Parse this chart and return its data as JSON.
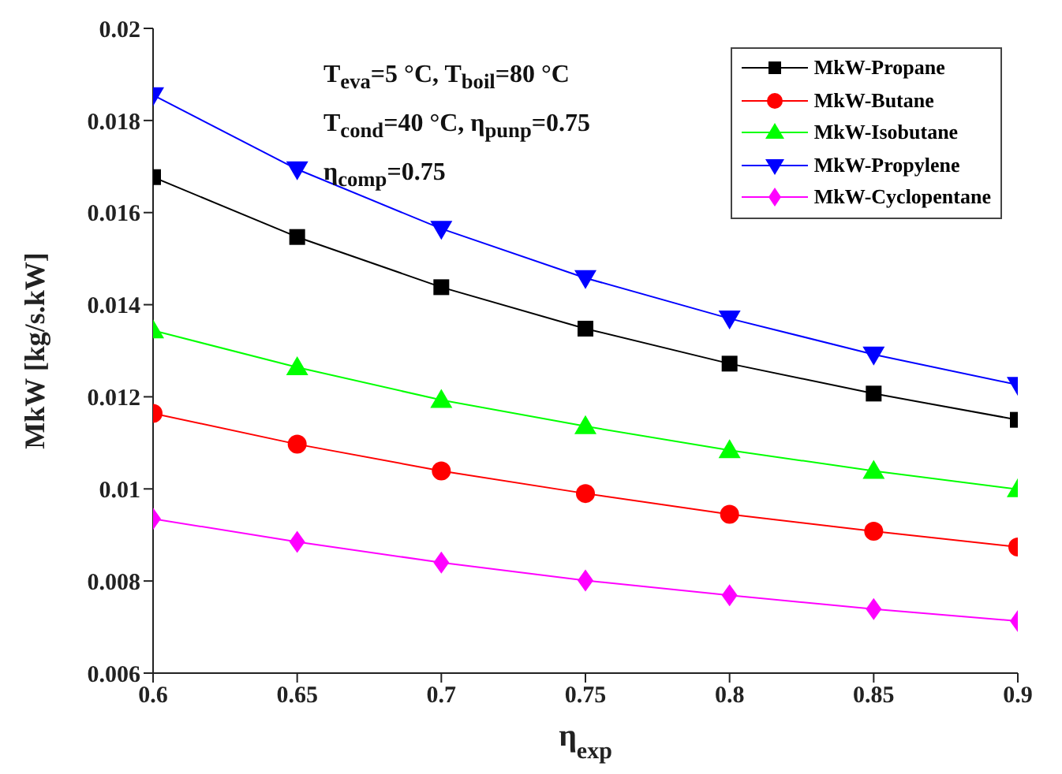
{
  "chart_data": {
    "type": "line",
    "xlabel": "η$_{exp}$",
    "ylabel": "MkW [kg/s.kW]",
    "x": [
      0.6,
      0.65,
      0.7,
      0.75,
      0.8,
      0.85,
      0.9
    ],
    "xlim": [
      0.6,
      0.9
    ],
    "xticks": [
      0.6,
      0.65,
      0.7,
      0.75,
      0.8,
      0.85,
      0.9
    ],
    "ylim": [
      0.006,
      0.02
    ],
    "yticks": [
      0.006,
      0.008,
      0.01,
      0.012,
      0.014,
      0.016,
      0.018,
      0.02
    ],
    "grid": false,
    "legend": "top right",
    "line_style": "solid",
    "annotations": [
      "T$_{eva}$=5 °C, T$_{boil}$=80 °C",
      "T$_{cond}$=40 °C, η$_{punp}$=0.75",
      "η$_{comp}$=0.75"
    ],
    "series": [
      {
        "name": "MkW-Propane",
        "color": "#000000",
        "marker": "square",
        "values": [
          0.01677,
          0.01547,
          0.01438,
          0.01348,
          0.01272,
          0.01207,
          0.0115
        ]
      },
      {
        "name": "MkW-Butane",
        "color": "#ff0000",
        "marker": "circle",
        "values": [
          0.01164,
          0.01097,
          0.01039,
          0.0099,
          0.00945,
          0.00908,
          0.00874
        ]
      },
      {
        "name": "MkW-Isobutane",
        "color": "#00ff00",
        "marker": "triangle",
        "values": [
          0.01344,
          0.01264,
          0.01193,
          0.01136,
          0.01084,
          0.01039,
          0.00999
        ]
      },
      {
        "name": "MkW-Propylene",
        "color": "#0000ff",
        "marker": "triangle-down",
        "values": [
          0.01855,
          0.01694,
          0.01565,
          0.01458,
          0.0137,
          0.01292,
          0.01226
        ]
      },
      {
        "name": "MkW-Cyclopentane",
        "color": "#ff00ff",
        "marker": "diamond",
        "values": [
          0.00935,
          0.00885,
          0.0084,
          0.00801,
          0.00769,
          0.00739,
          0.00713
        ]
      }
    ]
  }
}
